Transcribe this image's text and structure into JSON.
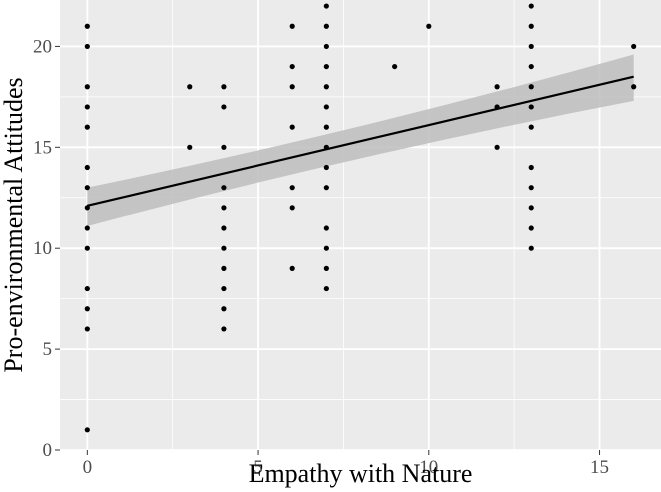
{
  "chart_data": {
    "type": "scatter",
    "title": "",
    "xlabel": "Empathy with Nature",
    "ylabel": "Pro-environmental Attitudes",
    "xlim": [
      -0.8,
      16.8
    ],
    "ylim": [
      0,
      22.3
    ],
    "xticks": [
      0,
      5,
      10,
      15
    ],
    "yticks": [
      0,
      5,
      10,
      15,
      20
    ],
    "xtick_labels": [
      "0",
      "5",
      "10",
      "15"
    ],
    "ytick_labels": [
      "0",
      "5",
      "10",
      "15",
      "20"
    ],
    "grid": true,
    "legend": "none",
    "points": [
      [
        0,
        1
      ],
      [
        0,
        6
      ],
      [
        0,
        7
      ],
      [
        0,
        8
      ],
      [
        0,
        10
      ],
      [
        0,
        11
      ],
      [
        0,
        12
      ],
      [
        0,
        13
      ],
      [
        0,
        14
      ],
      [
        0,
        16
      ],
      [
        0,
        17
      ],
      [
        0,
        18
      ],
      [
        0,
        20
      ],
      [
        0,
        21
      ],
      [
        3,
        15
      ],
      [
        3,
        18
      ],
      [
        4,
        6
      ],
      [
        4,
        7
      ],
      [
        4,
        8
      ],
      [
        4,
        9
      ],
      [
        4,
        10
      ],
      [
        4,
        11
      ],
      [
        4,
        12
      ],
      [
        4,
        13
      ],
      [
        4,
        15
      ],
      [
        4,
        17
      ],
      [
        4,
        18
      ],
      [
        6,
        9
      ],
      [
        6,
        12
      ],
      [
        6,
        13
      ],
      [
        6,
        16
      ],
      [
        6,
        18
      ],
      [
        6,
        19
      ],
      [
        6,
        21
      ],
      [
        7,
        8
      ],
      [
        7,
        9
      ],
      [
        7,
        10
      ],
      [
        7,
        11
      ],
      [
        7,
        13
      ],
      [
        7,
        14
      ],
      [
        7,
        15
      ],
      [
        7,
        16
      ],
      [
        7,
        17
      ],
      [
        7,
        18
      ],
      [
        7,
        19
      ],
      [
        7,
        20
      ],
      [
        7,
        21
      ],
      [
        7,
        22
      ],
      [
        9,
        19
      ],
      [
        10,
        21
      ],
      [
        12,
        15
      ],
      [
        12,
        17
      ],
      [
        12,
        18
      ],
      [
        13,
        10
      ],
      [
        13,
        11
      ],
      [
        13,
        12
      ],
      [
        13,
        13
      ],
      [
        13,
        14
      ],
      [
        13,
        16
      ],
      [
        13,
        17
      ],
      [
        13,
        18
      ],
      [
        13,
        19
      ],
      [
        13,
        20
      ],
      [
        13,
        21
      ],
      [
        13,
        22
      ],
      [
        16,
        18
      ],
      [
        16,
        20
      ]
    ],
    "fit": {
      "type": "linear",
      "intercept": 12.1,
      "slope": 0.4,
      "x_range": [
        0,
        16
      ],
      "ci_lower_at_ends": [
        11.1,
        17.3
      ],
      "ci_upper_at_ends": [
        13.0,
        19.6
      ]
    },
    "colors": {
      "panel": "#ebebeb",
      "grid": "#ffffff",
      "points": "#000000",
      "line": "#000000",
      "ribbon": "#bdbdbd"
    }
  }
}
